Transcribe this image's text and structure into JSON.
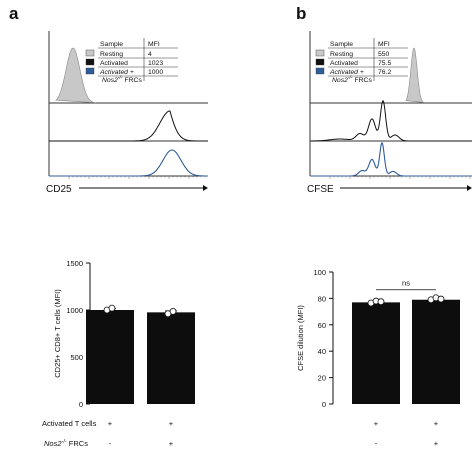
{
  "panels": {
    "a": {
      "letter": "a"
    },
    "b": {
      "letter": "b"
    }
  },
  "colors": {
    "resting": "#c8c8c8",
    "activated": "#111111",
    "nos2": "#2f5d9a",
    "bar": "#0d0d0d"
  },
  "histograms": {
    "a": {
      "legend_header": {
        "sample": "Sample",
        "mfi": "MFI"
      },
      "rows": [
        {
          "label": "Resting",
          "mfi": "4",
          "swatch": "#c8c8c8"
        },
        {
          "label": "Activated",
          "mfi": "1023",
          "swatch": "#111111"
        },
        {
          "label": "Activated +",
          "label2": "Nos2",
          "label2_sup": "-/-",
          "label2_rest": " FRCs",
          "mfi": "1000",
          "swatch": "#2f5d9a"
        }
      ],
      "xlabel": "CD25"
    },
    "b": {
      "legend_header": {
        "sample": "Sample",
        "mfi": "MFI"
      },
      "rows": [
        {
          "label": "Resting",
          "mfi": "550",
          "swatch": "#c8c8c8"
        },
        {
          "label": "Activated",
          "mfi": "75.5",
          "swatch": "#111111"
        },
        {
          "label": "Activated +",
          "label2": "Nos2",
          "label2_sup": "-/-",
          "label2_rest": " FRCs",
          "mfi": "76.2",
          "swatch": "#2f5d9a"
        }
      ],
      "xlabel": "CFSE"
    }
  },
  "chart_data": [
    {
      "type": "bar",
      "ylabel": "CD25+ CD8+ T cells (MFI)",
      "ylim": [
        0,
        1500
      ],
      "yticks": [
        "0",
        "500",
        "1000",
        "1500"
      ],
      "ytick_values": [
        0,
        500,
        1000,
        1500
      ],
      "values": [
        1000,
        975
      ],
      "points": [
        [
          1000,
          1020
        ],
        [
          960,
          985
        ]
      ]
    },
    {
      "type": "bar",
      "ylabel": "CFSE dilution (MFI)",
      "ylim": [
        0,
        100
      ],
      "yticks": [
        "0",
        "20",
        "40",
        "60",
        "80",
        "100"
      ],
      "ytick_values": [
        0,
        20,
        40,
        60,
        80,
        100
      ],
      "values": [
        77,
        79
      ],
      "points": [
        [
          76.5,
          78,
          77.5
        ],
        [
          79,
          80.5,
          79.5
        ]
      ],
      "annotation": "ns"
    }
  ],
  "conditions": {
    "row1_label": "Activated T cells",
    "row2_label": "Nos2",
    "row2_sup": "-/-",
    "row2_rest": " FRCs",
    "row1_marks": [
      "+",
      "+"
    ],
    "row2_marks": [
      "-",
      "+"
    ]
  }
}
